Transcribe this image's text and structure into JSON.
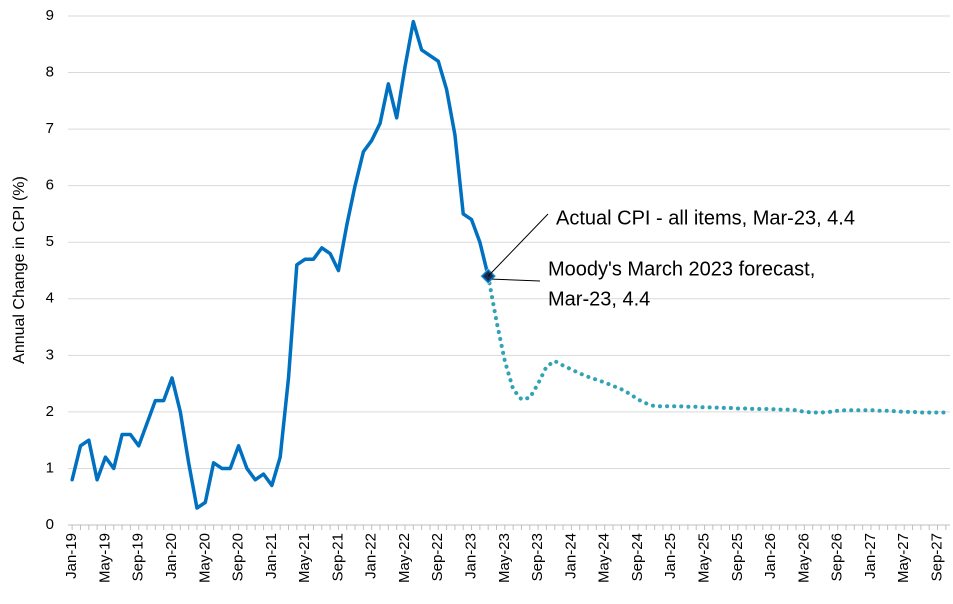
{
  "chart_data": {
    "type": "line",
    "y_label": "Annual Change in CPI (%)",
    "categories": [
      "Jan-19",
      null,
      null,
      null,
      "May-19",
      null,
      null,
      null,
      "Sep-19",
      null,
      null,
      null,
      "Jan-20",
      null,
      null,
      null,
      "May-20",
      null,
      null,
      null,
      "Sep-20",
      null,
      null,
      null,
      "Jan-21",
      null,
      null,
      null,
      "May-21",
      null,
      null,
      null,
      "Sep-21",
      null,
      null,
      null,
      "Jan-22",
      null,
      null,
      null,
      "May-22",
      null,
      null,
      null,
      "Sep-22",
      null,
      null,
      null,
      "Jan-23",
      null,
      null,
      null,
      "May-23",
      null,
      null,
      null,
      "Sep-23",
      null,
      null,
      null,
      "Jan-24",
      null,
      null,
      null,
      "May-24",
      null,
      null,
      null,
      "Sep-24",
      null,
      null,
      null,
      "Jan-25",
      null,
      null,
      null,
      "May-25",
      null,
      null,
      null,
      "Sep-25",
      null,
      null,
      null,
      "Jan-26",
      null,
      null,
      null,
      "May-26",
      null,
      null,
      null,
      "Sep-26",
      null,
      null,
      null,
      "Jan-27",
      null,
      null,
      null,
      "May-27",
      null,
      null,
      null,
      "Sep-27",
      null
    ],
    "series": [
      {
        "color": "#0070c0",
        "style": "solid",
        "values": [
          0.8,
          1.4,
          1.5,
          0.8,
          1.2,
          1.0,
          1.6,
          1.6,
          1.4,
          1.8,
          2.2,
          2.2,
          2.6,
          2.0,
          1.1,
          0.3,
          0.4,
          1.1,
          1.0,
          1.0,
          1.4,
          1.0,
          0.8,
          0.9,
          0.7,
          1.2,
          2.6,
          4.6,
          4.7,
          4.7,
          4.9,
          4.8,
          4.5,
          5.3,
          6.0,
          6.6,
          6.8,
          7.1,
          7.8,
          7.2,
          8.1,
          8.9,
          8.4,
          8.3,
          8.2,
          7.7,
          6.9,
          5.5,
          5.4,
          5.0,
          4.4,
          null,
          null,
          null,
          null,
          null,
          null,
          null,
          null,
          null,
          null,
          null,
          null,
          null,
          null,
          null,
          null,
          null,
          null,
          null,
          null,
          null,
          null,
          null,
          null,
          null,
          null,
          null,
          null,
          null,
          null,
          null,
          null,
          null,
          null,
          null,
          null,
          null,
          null,
          null,
          null,
          null,
          null,
          null,
          null,
          null,
          null,
          null,
          null,
          null,
          null,
          null,
          null,
          null,
          null,
          null
        ]
      },
      {
        "color": "#31a3b5",
        "style": "dotted",
        "values": [
          null,
          null,
          null,
          null,
          null,
          null,
          null,
          null,
          null,
          null,
          null,
          null,
          null,
          null,
          null,
          null,
          null,
          null,
          null,
          null,
          null,
          null,
          null,
          null,
          null,
          null,
          null,
          null,
          null,
          null,
          null,
          null,
          null,
          null,
          null,
          null,
          null,
          null,
          null,
          null,
          null,
          null,
          null,
          null,
          null,
          null,
          null,
          null,
          null,
          null,
          4.4,
          3.6,
          2.9,
          2.4,
          2.22,
          2.25,
          2.5,
          2.8,
          2.9,
          2.82,
          2.75,
          2.68,
          2.62,
          2.57,
          2.52,
          2.46,
          2.4,
          2.32,
          2.22,
          2.15,
          2.1,
          2.1,
          2.1,
          2.1,
          2.09,
          2.09,
          2.08,
          2.08,
          2.07,
          2.07,
          2.06,
          2.06,
          2.05,
          2.05,
          2.05,
          2.04,
          2.04,
          2.03,
          2.0,
          1.99,
          1.99,
          2.0,
          2.02,
          2.03,
          2.03,
          2.03,
          2.03,
          2.02,
          2.02,
          2.01,
          2.0,
          2.0,
          1.99,
          1.99,
          1.99,
          1.99
        ]
      }
    ],
    "annotations": [
      {
        "lines": [
          "Actual CPI - all items, Mar-23, 4.4"
        ]
      },
      {
        "lines": [
          "Moody's March 2023 forecast,",
          "Mar-23, 4.4"
        ]
      }
    ],
    "ylim": [
      0,
      9
    ],
    "yticks": [
      0,
      1,
      2,
      3,
      4,
      5,
      6,
      7,
      8,
      9
    ],
    "grid": true
  }
}
